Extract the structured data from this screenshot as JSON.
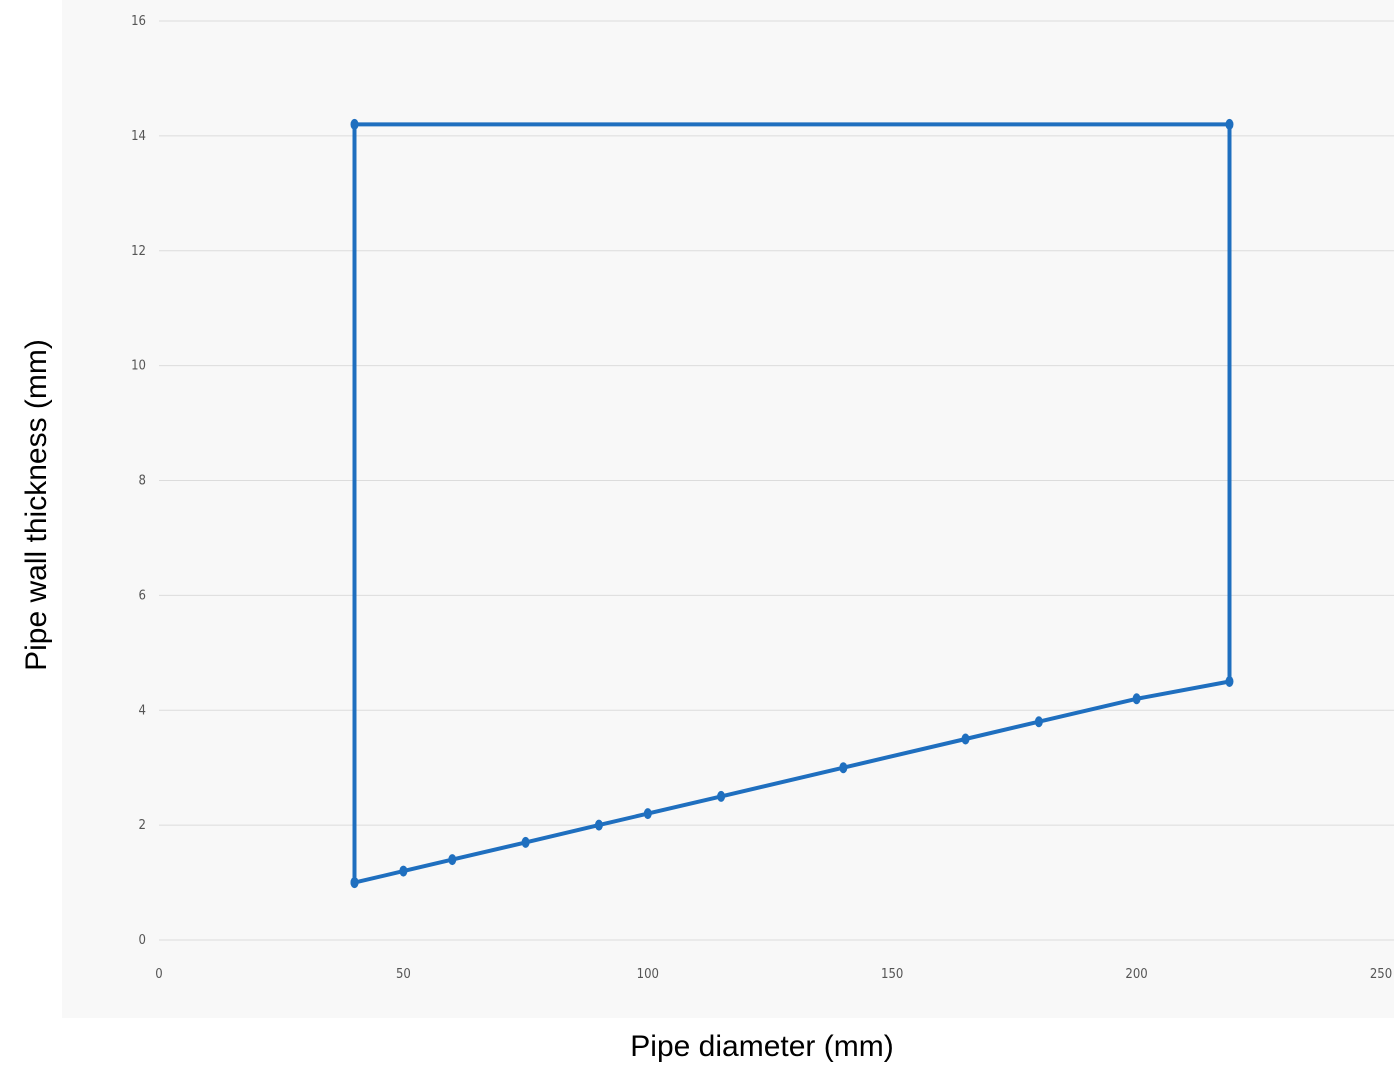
{
  "chart_data": {
    "type": "line",
    "xlabel": "Pipe diameter (mm)",
    "ylabel": "Pipe wall thickness (mm)",
    "xlim": [
      0,
      250
    ],
    "ylim": [
      0,
      16
    ],
    "xticks": [
      0,
      50,
      100,
      150,
      200,
      250
    ],
    "yticks": [
      0,
      2,
      4,
      6,
      8,
      10,
      12,
      14,
      16
    ],
    "grid": true,
    "legend": "none",
    "series": [
      {
        "color": "#1f6fbf",
        "points": [
          [
            40,
            1.0
          ],
          [
            50,
            1.2
          ],
          [
            60,
            1.4
          ],
          [
            75,
            1.7
          ],
          [
            90,
            2.0
          ],
          [
            100,
            2.2
          ],
          [
            115,
            2.5
          ],
          [
            140,
            3.0
          ],
          [
            165,
            3.5
          ],
          [
            180,
            3.8
          ],
          [
            200,
            4.2
          ],
          [
            219,
            4.5
          ],
          [
            219,
            14.2
          ],
          [
            40,
            14.2
          ],
          [
            40,
            1.0
          ]
        ]
      }
    ]
  }
}
